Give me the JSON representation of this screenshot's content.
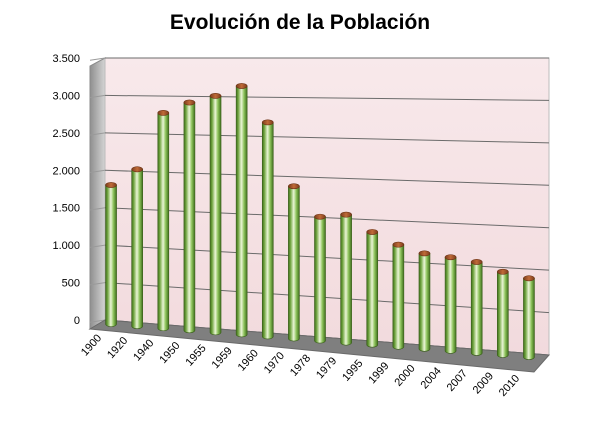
{
  "chart_data": {
    "type": "bar",
    "title": "Evolución de la Población",
    "xlabel": "",
    "ylabel": "",
    "categories": [
      "1900",
      "1920",
      "1940",
      "1950",
      "1955",
      "1959",
      "1960",
      "1970",
      "1978",
      "1979",
      "1995",
      "1999",
      "2000",
      "2004",
      "2007",
      "2009",
      "2010"
    ],
    "values": [
      1850,
      2070,
      2820,
      2960,
      3050,
      3180,
      2720,
      1920,
      1550,
      1590,
      1390,
      1250,
      1160,
      1130,
      1090,
      990,
      930
    ],
    "y_ticks": [
      0,
      500,
      1000,
      1500,
      2000,
      2500,
      3000,
      3500
    ],
    "y_tick_labels": [
      "0",
      "500",
      "1.000",
      "1.500",
      "2.000",
      "2.500",
      "3.000",
      "3.500"
    ],
    "ylim": [
      0,
      3500
    ],
    "grid": true,
    "legend": "none",
    "style": "3d-cylinder",
    "colors": {
      "bar_light": "#eaf5d6",
      "bar_mid": "#8cc25a",
      "bar_dark": "#3f6e1d",
      "bar_top": "#a4582d",
      "wall": "#f6e4e6",
      "wall_side": "#bfbfbf",
      "floor": "#7f7f7f",
      "gridline": "#6b6b6b"
    }
  }
}
